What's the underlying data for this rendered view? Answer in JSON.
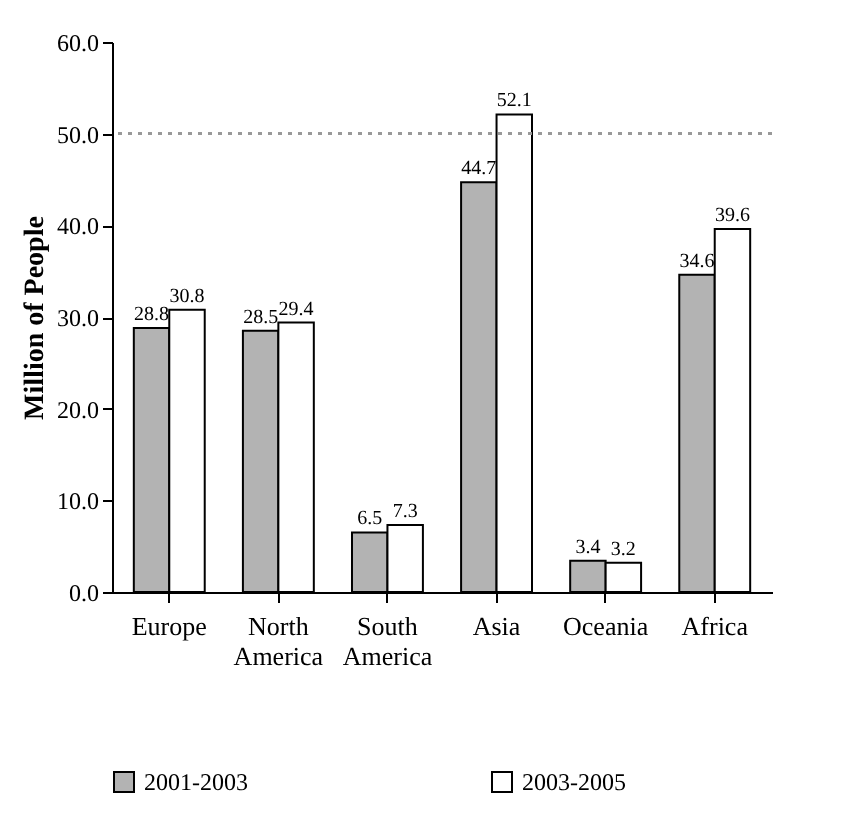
{
  "chart_data": {
    "type": "bar",
    "ylabel": "Million of People",
    "categories": [
      "Europe",
      "North America",
      "South America",
      "Asia",
      "Oceania",
      "Africa"
    ],
    "series": [
      {
        "name": "2001-2003",
        "color": "#b3b3b3",
        "values": [
          28.8,
          28.5,
          6.5,
          44.7,
          3.4,
          34.6
        ]
      },
      {
        "name": "2003-2005",
        "color": "#ffffff",
        "values": [
          30.8,
          29.4,
          7.3,
          52.1,
          3.2,
          39.6
        ]
      }
    ],
    "ylim": [
      0,
      60
    ],
    "yticks": [
      {
        "value": 0,
        "label": "0.0"
      },
      {
        "value": 10,
        "label": "10.0"
      },
      {
        "value": 20,
        "label": "20.0"
      },
      {
        "value": 30,
        "label": "30.0"
      },
      {
        "value": 40,
        "label": "40.0"
      },
      {
        "value": 50,
        "label": "50.0"
      },
      {
        "value": 60,
        "label": "60.0"
      }
    ],
    "ref_lines": [
      {
        "axis": "y",
        "value": 50,
        "color": "#999999",
        "line_style": "dotted"
      }
    ],
    "data_labels": true,
    "legend": "bottom",
    "grid": false
  }
}
